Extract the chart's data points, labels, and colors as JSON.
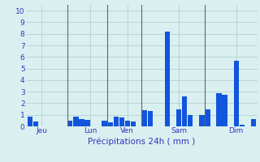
{
  "xlabel": "Précipitations 24h ( mm )",
  "background_color": "#daf0f0",
  "bar_color": "#1155dd",
  "grid_color": "#aacccc",
  "vline_color": "#666666",
  "axis_label_color": "#3333bb",
  "tick_color": "#3333bb",
  "ylim": [
    0,
    10.5
  ],
  "yticks": [
    0,
    1,
    2,
    3,
    4,
    5,
    6,
    7,
    8,
    9,
    10
  ],
  "day_labels": [
    "Jeu",
    "Lun",
    "Ven",
    "Sam",
    "Dim"
  ],
  "values": [
    0.85,
    0.45,
    0.0,
    0.0,
    0.0,
    0.0,
    0.0,
    0.5,
    0.85,
    0.65,
    0.55,
    0.0,
    0.0,
    0.5,
    0.35,
    0.85,
    0.75,
    0.5,
    0.45,
    0.0,
    1.4,
    1.3,
    0.0,
    0.0,
    8.2,
    0.0,
    1.5,
    2.6,
    1.0,
    0.0,
    1.0,
    1.5,
    0.0,
    2.85,
    2.75,
    0.0,
    5.7,
    0.15,
    0.0,
    0.6
  ],
  "n_bars": 40,
  "vline_indices": [
    7,
    14,
    20,
    31
  ],
  "day_center_indices": [
    2,
    10.5,
    17,
    26,
    36
  ],
  "figwidth": 3.2,
  "figheight": 2.0,
  "dpi": 100
}
